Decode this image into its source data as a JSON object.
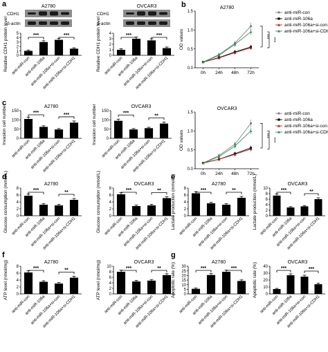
{
  "panels": [
    {
      "id": "a",
      "letter": "a"
    },
    {
      "id": "b",
      "letter": "b"
    },
    {
      "id": "c",
      "letter": "c"
    },
    {
      "id": "d",
      "letter": "d"
    },
    {
      "id": "e",
      "letter": "e"
    },
    {
      "id": "f",
      "letter": "f"
    },
    {
      "id": "g",
      "letter": "g"
    }
  ],
  "groups": [
    "anti-miR-con",
    "anti-miR-106a",
    "anti-miR-106a+si-con",
    "anti-miR-106a+si-CDH1"
  ],
  "line_legend": [
    "anti-miR-con",
    "anti-miR-106a",
    "anti-miR-106a+si-con",
    "anti-miR-106a+si-CDH1"
  ],
  "colors": {
    "bar": "#000000",
    "con": "#7f7f7f",
    "mir106a": "#000000",
    "sicon": "#b22222",
    "sicdh1": "#2e8b57",
    "blot_bg": "#8c8c8c",
    "band": "#1a1a1a"
  },
  "blots": [
    {
      "cell": "A2780",
      "rows": [
        "CDH1",
        "β-actin"
      ]
    },
    {
      "cell": "OVCAR3",
      "rows": [
        "CDH1",
        "β-actin"
      ]
    }
  ],
  "chart_data": [
    {
      "id": "a1",
      "type": "bar",
      "title": "",
      "ylabel": "Relative CDH1 protein level",
      "ylim": [
        0,
        5
      ],
      "yticks": [
        0,
        1,
        2,
        3,
        4,
        5
      ],
      "values": [
        1.0,
        3.0,
        3.5,
        1.5
      ],
      "errors": [
        0.2,
        0.3,
        0.3,
        0.2
      ],
      "sig": [
        {
          "from": 0,
          "to": 1,
          "label": "***"
        },
        {
          "from": 2,
          "to": 3,
          "label": "***"
        }
      ]
    },
    {
      "id": "a2",
      "type": "bar",
      "title": "",
      "ylabel": "Relative CDH1 protein level",
      "ylim": [
        0,
        4
      ],
      "yticks": [
        0,
        1,
        2,
        3,
        4
      ],
      "values": [
        1.0,
        3.0,
        2.7,
        1.3
      ],
      "errors": [
        0.2,
        0.3,
        0.3,
        0.2
      ],
      "sig": [
        {
          "from": 0,
          "to": 1,
          "label": "***"
        },
        {
          "from": 2,
          "to": 3,
          "label": "***"
        }
      ]
    },
    {
      "id": "b1",
      "type": "line",
      "title": "A2780",
      "ylabel": "OD values",
      "x": [
        "0h",
        "24h",
        "48h",
        "72h"
      ],
      "ylim": [
        0,
        1.5
      ],
      "yticks": [
        0.0,
        0.5,
        1.0,
        1.5
      ],
      "series": [
        {
          "name": "anti-miR-con",
          "colorKey": "con",
          "marker": "circle",
          "values": [
            0.15,
            0.35,
            0.65,
            1.1
          ],
          "errors": [
            0.02,
            0.05,
            0.07,
            0.1
          ]
        },
        {
          "name": "anti-miR-106a",
          "colorKey": "mir106a",
          "marker": "square",
          "values": [
            0.15,
            0.27,
            0.42,
            0.55
          ],
          "errors": [
            0.02,
            0.04,
            0.05,
            0.06
          ]
        },
        {
          "name": "anti-miR-106a+si-con",
          "colorKey": "sicon",
          "marker": "triangle",
          "values": [
            0.15,
            0.26,
            0.4,
            0.53
          ],
          "errors": [
            0.02,
            0.04,
            0.05,
            0.06
          ]
        },
        {
          "name": "anti-miR-106a+si-CDH1",
          "colorKey": "sicdh1",
          "marker": "triangle",
          "values": [
            0.15,
            0.33,
            0.62,
            0.95
          ],
          "errors": [
            0.02,
            0.05,
            0.07,
            0.08
          ]
        }
      ],
      "sig": [
        "***",
        "***"
      ]
    },
    {
      "id": "b2",
      "type": "line",
      "title": "OVCAR3",
      "ylabel": "OD values",
      "x": [
        "0h",
        "24h",
        "48h",
        "72h"
      ],
      "ylim": [
        0,
        1.5
      ],
      "yticks": [
        0.0,
        0.5,
        1.0,
        1.5
      ],
      "series": [
        {
          "name": "anti-miR-con",
          "colorKey": "con",
          "marker": "circle",
          "values": [
            0.15,
            0.35,
            0.65,
            1.2
          ],
          "errors": [
            0.02,
            0.05,
            0.07,
            0.1
          ]
        },
        {
          "name": "anti-miR-106a",
          "colorKey": "mir106a",
          "marker": "square",
          "values": [
            0.15,
            0.25,
            0.4,
            0.55
          ],
          "errors": [
            0.02,
            0.04,
            0.05,
            0.06
          ]
        },
        {
          "name": "anti-miR-106a+si-con",
          "colorKey": "sicon",
          "marker": "triangle",
          "values": [
            0.15,
            0.25,
            0.38,
            0.52
          ],
          "errors": [
            0.02,
            0.04,
            0.05,
            0.06
          ]
        },
        {
          "name": "anti-miR-106a+si-CDH1",
          "colorKey": "sicdh1",
          "marker": "triangle",
          "values": [
            0.15,
            0.32,
            0.6,
            1.0
          ],
          "errors": [
            0.02,
            0.05,
            0.07,
            0.08
          ]
        }
      ],
      "sig": [
        "***",
        "***"
      ]
    },
    {
      "id": "c1",
      "type": "bar",
      "title": "A2780",
      "ylabel": "Invasion cell number",
      "ylim": [
        0,
        150
      ],
      "yticks": [
        0,
        50,
        100,
        150
      ],
      "values": [
        105,
        62,
        48,
        85
      ],
      "errors": [
        10,
        6,
        5,
        9
      ],
      "sig": [
        {
          "from": 0,
          "to": 1,
          "label": "***"
        },
        {
          "from": 2,
          "to": 3,
          "label": "***"
        }
      ]
    },
    {
      "id": "c2",
      "type": "bar",
      "title": "OVCAR3",
      "ylabel": "Invasion cell number",
      "ylim": [
        0,
        150
      ],
      "yticks": [
        0,
        50,
        100,
        150
      ],
      "values": [
        95,
        48,
        55,
        80
      ],
      "errors": [
        9,
        5,
        5,
        8
      ],
      "sig": [
        {
          "from": 0,
          "to": 1,
          "label": "***"
        },
        {
          "from": 2,
          "to": 3,
          "label": "**"
        }
      ]
    },
    {
      "id": "d1",
      "type": "bar",
      "title": "A2780",
      "ylabel": "Glucose consumption (mmol/L)",
      "ylim": [
        0,
        8
      ],
      "yticks": [
        0,
        2,
        4,
        6,
        8
      ],
      "values": [
        5.8,
        3.2,
        3.0,
        4.6
      ],
      "errors": [
        0.5,
        0.3,
        0.3,
        0.4
      ],
      "sig": [
        {
          "from": 0,
          "to": 1,
          "label": "***"
        },
        {
          "from": 2,
          "to": 3,
          "label": "**"
        }
      ]
    },
    {
      "id": "d2",
      "type": "bar",
      "title": "OVCAR3",
      "ylabel": "Glucose consumption (mmol/L)",
      "ylim": [
        0,
        8
      ],
      "yticks": [
        0,
        2,
        4,
        6,
        8
      ],
      "values": [
        6.2,
        2.8,
        3.0,
        5.1
      ],
      "errors": [
        0.5,
        0.3,
        0.3,
        0.4
      ],
      "sig": [
        {
          "from": 0,
          "to": 1,
          "label": "***"
        },
        {
          "from": 2,
          "to": 3,
          "label": "**"
        }
      ]
    },
    {
      "id": "e1",
      "type": "bar",
      "title": "A2780",
      "ylabel": "Lactate production (mmol/L)",
      "ylim": [
        0,
        8
      ],
      "yticks": [
        0,
        2,
        4,
        6,
        8
      ],
      "values": [
        6.5,
        3.6,
        3.2,
        5.2
      ],
      "errors": [
        0.5,
        0.3,
        0.3,
        0.4
      ],
      "sig": [
        {
          "from": 0,
          "to": 1,
          "label": "***"
        },
        {
          "from": 2,
          "to": 3,
          "label": "**"
        }
      ]
    },
    {
      "id": "e2",
      "type": "bar",
      "title": "OVCAR3",
      "ylabel": "Lactate production (mmol/L)",
      "ylim": [
        0,
        10
      ],
      "yticks": [
        0,
        2,
        4,
        6,
        8,
        10
      ],
      "values": [
        7.3,
        3.0,
        3.4,
        6.0
      ],
      "errors": [
        0.6,
        0.3,
        0.3,
        0.5
      ],
      "sig": [
        {
          "from": 0,
          "to": 1,
          "label": "***"
        },
        {
          "from": 2,
          "to": 3,
          "label": "**"
        }
      ]
    },
    {
      "id": "f1",
      "type": "bar",
      "title": "A2780",
      "ylabel": "ATP level (nmol/mg)",
      "ylim": [
        0,
        8
      ],
      "yticks": [
        0,
        2,
        4,
        6,
        8
      ],
      "values": [
        6.2,
        3.5,
        3.0,
        4.7
      ],
      "errors": [
        0.5,
        0.3,
        0.3,
        0.4
      ],
      "sig": [
        {
          "from": 0,
          "to": 1,
          "label": "***"
        },
        {
          "from": 2,
          "to": 3,
          "label": "**"
        }
      ]
    },
    {
      "id": "f2",
      "type": "bar",
      "title": "OVCAR3",
      "ylabel": "ATP level (nmol/mg)",
      "ylim": [
        0,
        10
      ],
      "yticks": [
        0,
        2,
        4,
        6,
        8,
        10
      ],
      "values": [
        8.0,
        4.5,
        4.8,
        6.8
      ],
      "errors": [
        0.6,
        0.4,
        0.4,
        0.5
      ],
      "sig": [
        {
          "from": 0,
          "to": 1,
          "label": "***"
        },
        {
          "from": 2,
          "to": 3,
          "label": "**"
        }
      ]
    },
    {
      "id": "g1",
      "type": "bar",
      "title": "A2780",
      "ylabel": "Apoptotic rate (%)",
      "ylim": [
        0,
        30
      ],
      "yticks": [
        0,
        5,
        10,
        15,
        20,
        25,
        30
      ],
      "values": [
        5.5,
        20.5,
        24.0,
        14.0
      ],
      "errors": [
        1.0,
        1.5,
        1.8,
        1.2
      ],
      "sig": [
        {
          "from": 0,
          "to": 1,
          "label": "***"
        },
        {
          "from": 2,
          "to": 3,
          "label": "***"
        }
      ]
    },
    {
      "id": "g2",
      "type": "bar",
      "title": "OVCAR3",
      "ylabel": "Apoptotic rate (%)",
      "ylim": [
        0,
        40
      ],
      "yticks": [
        0,
        10,
        20,
        30,
        40
      ],
      "values": [
        7.0,
        27.0,
        25.0,
        14.0
      ],
      "errors": [
        1.0,
        2.0,
        2.0,
        1.5
      ],
      "sig": [
        {
          "from": 0,
          "to": 1,
          "label": "***"
        },
        {
          "from": 2,
          "to": 3,
          "label": "***"
        }
      ]
    }
  ]
}
